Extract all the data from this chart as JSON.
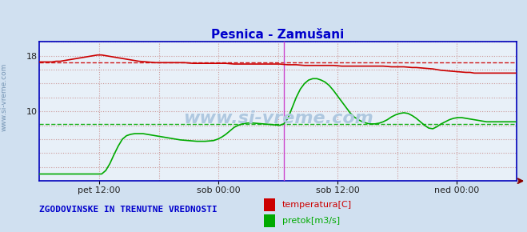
{
  "title": "Pesnica - Zamušani",
  "title_color": "#0000cc",
  "title_fontsize": 11,
  "bg_color": "#d0e0f0",
  "plot_bg_color": "#e8f0f8",
  "border_color": "#0000bb",
  "x_min": 0,
  "x_max": 576,
  "y_min": 0,
  "y_max": 20,
  "y_ticks": [
    10,
    18
  ],
  "x_tick_labels": [
    "pet 12:00",
    "sob 00:00",
    "sob 12:00",
    "ned 00:00"
  ],
  "x_tick_positions": [
    72,
    216,
    360,
    504
  ],
  "watermark": "www.si-vreme.com",
  "watermark_color": "#afc8e0",
  "watermark_alpha": 1.0,
  "legend_label1": "temperatura[C]",
  "legend_label2": "pretok[m3/s]",
  "legend_color1": "#cc0000",
  "legend_color2": "#00aa00",
  "footer_text": "ZGODOVINSKE IN TRENUTNE VREDNOSTI",
  "footer_color": "#0000cc",
  "footer_fontsize": 8,
  "grid_color": "#cc9999",
  "avg_temp": 17.0,
  "avg_flow": 8.2,
  "vertical_line_x": 295,
  "vertical_line_color": "#cc44cc",
  "temp_data_x": [
    0,
    5,
    10,
    15,
    20,
    25,
    30,
    35,
    40,
    45,
    50,
    55,
    60,
    65,
    70,
    75,
    80,
    85,
    90,
    95,
    100,
    105,
    110,
    115,
    120,
    125,
    130,
    135,
    140,
    145,
    150,
    155,
    160,
    165,
    170,
    175,
    180,
    185,
    190,
    195,
    200,
    205,
    210,
    215,
    220,
    225,
    230,
    235,
    240,
    245,
    250,
    255,
    260,
    265,
    270,
    275,
    280,
    285,
    290,
    295,
    300,
    305,
    310,
    315,
    320,
    325,
    330,
    335,
    340,
    345,
    350,
    355,
    360,
    365,
    370,
    375,
    380,
    385,
    390,
    395,
    400,
    405,
    410,
    415,
    420,
    425,
    430,
    435,
    440,
    445,
    450,
    455,
    460,
    465,
    470,
    475,
    480,
    485,
    490,
    495,
    500,
    505,
    510,
    515,
    520,
    525,
    530,
    535,
    540,
    545,
    550,
    555,
    560,
    565,
    570,
    575
  ],
  "temp_data_y": [
    17.1,
    17.1,
    17.1,
    17.1,
    17.2,
    17.2,
    17.3,
    17.4,
    17.5,
    17.6,
    17.7,
    17.8,
    17.9,
    18.0,
    18.1,
    18.1,
    18.0,
    17.9,
    17.8,
    17.7,
    17.6,
    17.5,
    17.4,
    17.3,
    17.2,
    17.15,
    17.1,
    17.05,
    17.0,
    17.0,
    17.0,
    17.0,
    17.0,
    17.0,
    17.0,
    17.0,
    16.95,
    16.9,
    16.9,
    16.9,
    16.9,
    16.9,
    16.9,
    16.9,
    16.9,
    16.9,
    16.85,
    16.8,
    16.8,
    16.8,
    16.8,
    16.8,
    16.8,
    16.8,
    16.8,
    16.8,
    16.8,
    16.8,
    16.8,
    16.75,
    16.7,
    16.7,
    16.7,
    16.65,
    16.6,
    16.6,
    16.6,
    16.6,
    16.6,
    16.6,
    16.6,
    16.6,
    16.55,
    16.5,
    16.5,
    16.5,
    16.5,
    16.5,
    16.5,
    16.5,
    16.5,
    16.5,
    16.5,
    16.5,
    16.45,
    16.4,
    16.4,
    16.4,
    16.4,
    16.35,
    16.3,
    16.3,
    16.25,
    16.2,
    16.15,
    16.1,
    16.0,
    15.9,
    15.85,
    15.8,
    15.75,
    15.7,
    15.65,
    15.6,
    15.6,
    15.5,
    15.5,
    15.5,
    15.5,
    15.5,
    15.5,
    15.5,
    15.5,
    15.5,
    15.5,
    15.5
  ],
  "flow_data_x": [
    0,
    5,
    10,
    15,
    20,
    25,
    30,
    35,
    40,
    45,
    50,
    55,
    60,
    65,
    70,
    75,
    80,
    85,
    90,
    95,
    100,
    105,
    110,
    115,
    120,
    125,
    130,
    135,
    140,
    145,
    150,
    155,
    160,
    165,
    170,
    175,
    180,
    185,
    190,
    195,
    200,
    205,
    210,
    215,
    220,
    225,
    230,
    235,
    240,
    245,
    250,
    255,
    260,
    265,
    270,
    275,
    280,
    285,
    290,
    295,
    300,
    305,
    310,
    315,
    320,
    325,
    330,
    335,
    340,
    345,
    350,
    355,
    360,
    365,
    370,
    375,
    380,
    385,
    390,
    395,
    400,
    405,
    410,
    415,
    420,
    425,
    430,
    435,
    440,
    445,
    450,
    455,
    460,
    465,
    470,
    475,
    480,
    485,
    490,
    495,
    500,
    505,
    510,
    515,
    520,
    525,
    530,
    535,
    540,
    545,
    550,
    555,
    560,
    565,
    570,
    575
  ],
  "flow_data_y": [
    1.0,
    1.0,
    1.0,
    1.0,
    1.0,
    1.0,
    1.0,
    1.0,
    1.0,
    1.0,
    1.0,
    1.0,
    1.0,
    1.0,
    1.0,
    1.0,
    1.5,
    2.5,
    3.8,
    5.0,
    6.0,
    6.5,
    6.7,
    6.8,
    6.8,
    6.8,
    6.7,
    6.6,
    6.5,
    6.4,
    6.3,
    6.2,
    6.1,
    6.0,
    5.9,
    5.85,
    5.8,
    5.75,
    5.7,
    5.7,
    5.7,
    5.75,
    5.8,
    6.0,
    6.3,
    6.7,
    7.2,
    7.7,
    8.0,
    8.2,
    8.3,
    8.35,
    8.3,
    8.25,
    8.2,
    8.15,
    8.1,
    8.05,
    8.0,
    8.2,
    9.0,
    10.5,
    12.0,
    13.2,
    14.0,
    14.5,
    14.7,
    14.7,
    14.5,
    14.2,
    13.7,
    13.0,
    12.2,
    11.4,
    10.6,
    9.8,
    9.2,
    8.8,
    8.5,
    8.3,
    8.2,
    8.2,
    8.3,
    8.5,
    8.8,
    9.2,
    9.5,
    9.7,
    9.8,
    9.7,
    9.4,
    9.0,
    8.5,
    8.0,
    7.6,
    7.5,
    7.8,
    8.2,
    8.5,
    8.8,
    9.0,
    9.1,
    9.1,
    9.0,
    8.9,
    8.8,
    8.7,
    8.6,
    8.5,
    8.5,
    8.5,
    8.5,
    8.5,
    8.5,
    8.5,
    8.5
  ]
}
